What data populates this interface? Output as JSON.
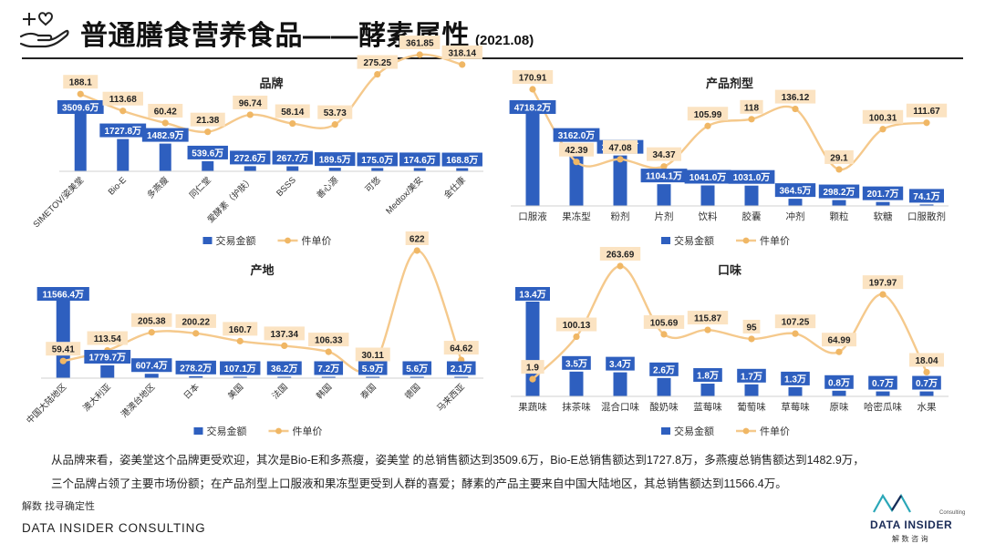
{
  "header": {
    "title": "普通膳食营养食品——酵素属性",
    "date": "(2021.08)"
  },
  "colors": {
    "bar": "#2e5fbf",
    "line": "#f5c98c",
    "line_marker": "#f0b765",
    "bar_label_bg": "#2e5fbf",
    "line_label_bg": "#fbe3c2"
  },
  "chart_data": [
    {
      "type": "bar",
      "title": "品牌",
      "categories": [
        "SIMETOV/姿美堂",
        "Bio-E",
        "多燕瘦",
        "同仁堂",
        "爱酵素（护肤）",
        "BSSS",
        "善心源",
        "可悠",
        "Medtox/美安",
        "金仕康"
      ],
      "series": [
        {
          "name": "交易金额",
          "type": "bar",
          "values": [
            3509.6,
            1727.8,
            1482.9,
            539.6,
            272.6,
            267.7,
            189.5,
            175.0,
            174.6,
            168.8
          ],
          "labels": [
            "3509.6万",
            "1727.8万",
            "1482.9万",
            "539.6万",
            "272.6万",
            "267.7万",
            "189.5万",
            "175.0万",
            "174.6万",
            "168.8万"
          ]
        },
        {
          "name": "件单价",
          "type": "line",
          "values": [
            188.1,
            113.68,
            60.42,
            21.38,
            96.74,
            58.14,
            53.73,
            275.25,
            361.85,
            318.14
          ],
          "labels": [
            "188.1",
            "113.68",
            "60.42",
            "21.38",
            "96.74",
            "58.14",
            "53.73",
            "275.25",
            "361.85",
            "318.14"
          ]
        }
      ],
      "legend": [
        "交易金额",
        "件单价"
      ],
      "legend_position": "bottom"
    },
    {
      "type": "bar",
      "title": "产品剂型",
      "categories": [
        "口服液",
        "果冻型",
        "粉剂",
        "片剂",
        "饮料",
        "胶囊",
        "冲剂",
        "颗粒",
        "软糖",
        "口服散剂"
      ],
      "series": [
        {
          "name": "交易金额",
          "type": "bar",
          "values": [
            4718.2,
            3162.0,
            2561.5,
            1104.1,
            1041.0,
            1031.0,
            364.5,
            298.2,
            201.7,
            74.1
          ],
          "labels": [
            "4718.2万",
            "3162.0万",
            "2561.5万",
            "1104.1万",
            "1041.0万",
            "1031.0万",
            "364.5万",
            "298.2万",
            "201.7万",
            "74.1万"
          ]
        },
        {
          "name": "件单价",
          "type": "line",
          "values": [
            170.91,
            42.39,
            47.08,
            34.37,
            105.99,
            118,
            136.12,
            29.1,
            100.31,
            111.67
          ],
          "labels": [
            "170.91",
            "42.39",
            "47.08",
            "34.37",
            "105.99",
            "118",
            "136.12",
            "29.1",
            "100.31",
            "111.67"
          ]
        }
      ],
      "legend": [
        "交易金额",
        "件单价"
      ],
      "legend_position": "bottom"
    },
    {
      "type": "bar",
      "title": "产地",
      "categories": [
        "中国大陆地区",
        "澳大利亚",
        "港澳台地区",
        "日本",
        "美国",
        "法国",
        "韩国",
        "泰国",
        "德国",
        "马来西亚"
      ],
      "series": [
        {
          "name": "交易金额",
          "type": "bar",
          "values": [
            11566.4,
            1779.7,
            607.4,
            278.2,
            107.1,
            36.2,
            7.2,
            5.9,
            5.6,
            2.1
          ],
          "labels": [
            "11566.4万",
            "1779.7万",
            "607.4万",
            "278.2万",
            "107.1万",
            "36.2万",
            "7.2万",
            "5.9万",
            "5.6万",
            "2.1万"
          ]
        },
        {
          "name": "件单价",
          "type": "line",
          "values": [
            59.41,
            113.54,
            205.38,
            200.22,
            160.7,
            137.34,
            106.33,
            30.11,
            622,
            64.62
          ],
          "labels": [
            "59.41",
            "113.54",
            "205.38",
            "200.22",
            "160.7",
            "137.34",
            "106.33",
            "30.11",
            "622",
            "64.62"
          ]
        }
      ],
      "legend": [
        "交易金额",
        "件单价"
      ],
      "legend_position": "bottom"
    },
    {
      "type": "bar",
      "title": "口味",
      "categories": [
        "果蔬味",
        "抹茶味",
        "混合口味",
        "酸奶味",
        "蓝莓味",
        "葡萄味",
        "草莓味",
        "原味",
        "哈密瓜味",
        "水果"
      ],
      "series": [
        {
          "name": "交易金额",
          "type": "bar",
          "values": [
            13.4,
            3.5,
            3.4,
            2.6,
            1.8,
            1.7,
            1.3,
            0.8,
            0.7,
            0.7
          ],
          "labels": [
            "13.4万",
            "3.5万",
            "3.4万",
            "2.6万",
            "1.8万",
            "1.7万",
            "1.3万",
            "0.8万",
            "0.7万",
            "0.7万"
          ]
        },
        {
          "name": "件单价",
          "type": "line",
          "values": [
            1.9,
            100.13,
            263.69,
            105.69,
            115.87,
            95,
            107.25,
            64.99,
            197.97,
            18.04
          ],
          "labels": [
            "1.9",
            "100.13",
            "263.69",
            "105.69",
            "115.87",
            "95",
            "107.25",
            "64.99",
            "197.97",
            "18.04"
          ]
        }
      ],
      "legend": [
        "交易金额",
        "件单价"
      ],
      "legend_position": "bottom"
    }
  ],
  "summary": {
    "line1": "从品牌来看，姿美堂这个品牌更受欢迎，其次是Bio-E和多燕瘦，姿美堂 的总销售额达到3509.6万，Bio-E总销售额达到1727.8万，多燕瘦总销售额达到1482.9万，",
    "line2": "三个品牌占领了主要市场份额；在产品剂型上口服液和果冻型更受到人群的喜爱；酵素的产品主要来自中国大陆地区，其总销售额达到11566.4万。"
  },
  "footer": {
    "source": "解数 找寻确定性",
    "company": "DATA INSIDER CONSULTING",
    "logo_consulting": "Consulting",
    "logo_name": "DATA INSIDER",
    "logo_cn": "解 数 咨 询"
  }
}
